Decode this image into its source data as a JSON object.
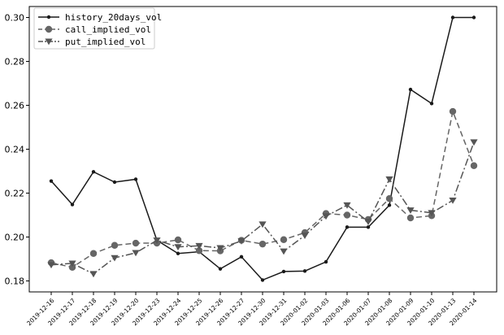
{
  "chart_data": {
    "type": "line",
    "title": "",
    "xlabel": "",
    "ylabel": "",
    "categories": [
      "2019-12-16",
      "2019-12-17",
      "2019-12-18",
      "2019-12-19",
      "2019-12-20",
      "2019-12-23",
      "2019-12-24",
      "2019-12-25",
      "2019-12-26",
      "2019-12-27",
      "2019-12-30",
      "2019-12-31",
      "2020-01-02",
      "2020-01-03",
      "2020-01-06",
      "2020-01-07",
      "2020-01-08",
      "2020-01-09",
      "2020-01-10",
      "2020-01-13",
      "2020-01-14"
    ],
    "yticks": [
      "0.18",
      "0.20",
      "0.22",
      "0.24",
      "0.26",
      "0.28",
      "0.30"
    ],
    "ylim": [
      0.175,
      0.305
    ],
    "grid": false,
    "legend_position": "upper-left",
    "series": [
      {
        "name": "history_20days_vol",
        "color": "#1a1a1a",
        "marker": "dot",
        "linestyle": "solid",
        "values": [
          0.2255,
          0.2148,
          0.2297,
          0.225,
          0.2263,
          0.1985,
          0.1925,
          0.1933,
          0.1855,
          0.191,
          0.1804,
          0.1843,
          0.1845,
          0.1887,
          0.2045,
          0.2045,
          0.2145,
          0.2672,
          0.2608,
          0.3,
          0.3
        ]
      },
      {
        "name": "call_implied_vol",
        "color": "#666666",
        "marker": "circle",
        "linestyle": "dashed",
        "values": [
          0.1883,
          0.1862,
          0.1925,
          0.1962,
          0.1972,
          0.1972,
          0.1987,
          0.1938,
          0.1937,
          0.1985,
          0.1968,
          0.1988,
          0.202,
          0.2107,
          0.21,
          0.208,
          0.2175,
          0.2087,
          0.2097,
          0.2572,
          0.2325
        ]
      },
      {
        "name": "put_implied_vol",
        "color": "#555555",
        "marker": "triangle-down",
        "linestyle": "dashdot",
        "values": [
          0.1873,
          0.188,
          0.1832,
          0.1905,
          0.1928,
          0.1985,
          0.1955,
          0.196,
          0.195,
          0.1982,
          0.2058,
          0.1935,
          0.2007,
          0.2095,
          0.2145,
          0.207,
          0.2263,
          0.2122,
          0.211,
          0.2167,
          0.2432
        ]
      }
    ]
  }
}
